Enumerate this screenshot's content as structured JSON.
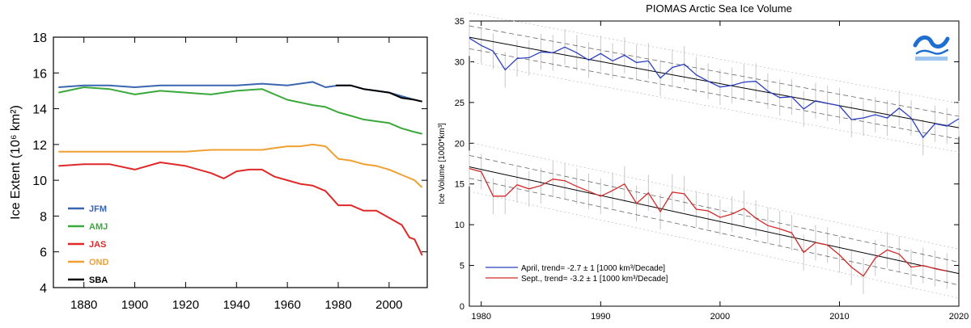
{
  "colors": {
    "jfm": "#3a66b0",
    "amj": "#3aa83a",
    "jas": "#e02828",
    "ond": "#f0a030",
    "sba": "#000000",
    "april": "#2a3fc0",
    "sept": "#d02a2a"
  },
  "chart_data": [
    {
      "type": "line",
      "title": "",
      "xlabel": "",
      "ylabel": "Ice Extent (10⁶ km²)",
      "xlim": [
        1868,
        2015
      ],
      "ylim": [
        4,
        18
      ],
      "x_ticks": [
        1880,
        1900,
        1920,
        1940,
        1960,
        1980,
        2000
      ],
      "y_ticks": [
        4,
        6,
        8,
        10,
        12,
        14,
        16,
        18
      ],
      "legend": [
        "JFM",
        "AMJ",
        "JAS",
        "OND",
        "SBA"
      ],
      "legend_position": "bottom-left",
      "series": [
        {
          "name": "JFM",
          "color_key": "jfm",
          "x": [
            1870,
            1880,
            1890,
            1900,
            1910,
            1920,
            1930,
            1940,
            1950,
            1960,
            1970,
            1975,
            1980,
            1985,
            1990,
            1995,
            2000,
            2005,
            2010,
            2013
          ],
          "y": [
            15.2,
            15.3,
            15.3,
            15.2,
            15.3,
            15.3,
            15.3,
            15.3,
            15.4,
            15.3,
            15.5,
            15.2,
            15.3,
            15.3,
            15.1,
            15.0,
            14.9,
            14.7,
            14.5,
            14.4
          ]
        },
        {
          "name": "AMJ",
          "color_key": "amj",
          "x": [
            1870,
            1880,
            1890,
            1900,
            1910,
            1920,
            1930,
            1940,
            1950,
            1960,
            1970,
            1975,
            1980,
            1985,
            1990,
            1995,
            2000,
            2005,
            2010,
            2013
          ],
          "y": [
            14.9,
            15.2,
            15.1,
            14.8,
            15.0,
            14.9,
            14.8,
            15.0,
            15.1,
            14.5,
            14.2,
            14.1,
            13.8,
            13.6,
            13.4,
            13.3,
            13.2,
            12.9,
            12.7,
            12.6
          ]
        },
        {
          "name": "JAS",
          "color_key": "jas",
          "x": [
            1870,
            1880,
            1890,
            1900,
            1910,
            1920,
            1930,
            1935,
            1940,
            1945,
            1950,
            1955,
            1960,
            1965,
            1970,
            1975,
            1980,
            1985,
            1990,
            1995,
            2000,
            2005,
            2008,
            2010,
            2013
          ],
          "y": [
            10.8,
            10.9,
            10.9,
            10.6,
            11.0,
            10.8,
            10.4,
            10.1,
            10.5,
            10.6,
            10.6,
            10.2,
            10.0,
            9.8,
            9.7,
            9.4,
            8.6,
            8.6,
            8.3,
            8.3,
            7.9,
            7.5,
            6.8,
            6.7,
            5.8
          ]
        },
        {
          "name": "OND",
          "color_key": "ond",
          "x": [
            1870,
            1880,
            1890,
            1900,
            1910,
            1920,
            1930,
            1940,
            1950,
            1955,
            1960,
            1965,
            1970,
            1975,
            1980,
            1985,
            1990,
            1995,
            2000,
            2005,
            2010,
            2013
          ],
          "y": [
            11.6,
            11.6,
            11.6,
            11.6,
            11.6,
            11.6,
            11.7,
            11.7,
            11.7,
            11.8,
            11.9,
            11.9,
            12.0,
            11.9,
            11.2,
            11.1,
            10.9,
            10.8,
            10.6,
            10.3,
            10.0,
            9.6
          ]
        },
        {
          "name": "SBA",
          "color_key": "sba",
          "x": [
            1979,
            1985,
            1990,
            1995,
            2000,
            2005,
            2010,
            2013
          ],
          "y": [
            15.3,
            15.3,
            15.1,
            15.0,
            14.9,
            14.6,
            14.5,
            14.4
          ]
        }
      ]
    },
    {
      "type": "line",
      "title": "PIOMAS Arctic Sea Ice Volume",
      "xlabel": "",
      "ylabel": "Ice Volume [1000*km³]",
      "xlim": [
        1979,
        2020
      ],
      "ylim": [
        0,
        35
      ],
      "x_ticks": [
        1980,
        1990,
        2000,
        2010,
        2020
      ],
      "y_ticks": [
        0,
        5,
        10,
        15,
        20,
        25,
        30,
        35
      ],
      "legend": [
        "April, trend= -2.7 ± 1 [1000 km³/Decade]",
        "Sept., trend= -3.2 ± 1 [1000 km³/Decade]"
      ],
      "legend_position": "bottom-left",
      "series": [
        {
          "name": "April, trend= -2.7 ± 1 [1000 km³/Decade]",
          "color_key": "april",
          "x": [
            1979,
            1980,
            1981,
            1982,
            1983,
            1984,
            1985,
            1986,
            1987,
            1988,
            1989,
            1990,
            1991,
            1992,
            1993,
            1994,
            1995,
            1996,
            1997,
            1998,
            1999,
            2000,
            2001,
            2002,
            2003,
            2004,
            2005,
            2006,
            2007,
            2008,
            2009,
            2010,
            2011,
            2012,
            2013,
            2014,
            2015,
            2016,
            2017,
            2018,
            2019,
            2020
          ],
          "y": [
            32.9,
            32.0,
            31.3,
            29.0,
            30.4,
            30.5,
            31.2,
            31.1,
            31.8,
            31.1,
            30.2,
            31.0,
            30.1,
            30.8,
            29.9,
            30.1,
            28.0,
            29.3,
            29.7,
            28.4,
            27.6,
            26.9,
            27.1,
            27.5,
            27.6,
            26.4,
            25.6,
            25.7,
            24.2,
            25.2,
            24.9,
            24.6,
            22.9,
            23.1,
            23.5,
            23.1,
            24.3,
            23.1,
            20.7,
            22.4,
            22.1,
            23.0
          ]
        },
        {
          "name": "Sept., trend= -3.2 ± 1 [1000 km³/Decade]",
          "color_key": "sept",
          "x": [
            1979,
            1980,
            1981,
            1982,
            1983,
            1984,
            1985,
            1986,
            1987,
            1988,
            1989,
            1990,
            1991,
            1992,
            1993,
            1994,
            1995,
            1996,
            1997,
            1998,
            1999,
            2000,
            2001,
            2002,
            2003,
            2004,
            2005,
            2006,
            2007,
            2008,
            2009,
            2010,
            2011,
            2012,
            2013,
            2014,
            2015,
            2016,
            2017,
            2018,
            2019
          ],
          "y": [
            16.9,
            16.5,
            13.5,
            13.5,
            14.9,
            14.4,
            14.8,
            15.6,
            15.4,
            14.7,
            14.1,
            13.5,
            14.2,
            15.0,
            12.6,
            13.9,
            11.6,
            14.0,
            13.8,
            11.9,
            11.7,
            10.9,
            11.3,
            12.0,
            10.8,
            9.9,
            9.5,
            9.0,
            6.6,
            7.8,
            7.5,
            6.3,
            4.8,
            3.7,
            5.9,
            6.9,
            6.4,
            4.8,
            5.0,
            4.6,
            4.3
          ]
        }
      ],
      "trend_lines": [
        {
          "color_key": "sba",
          "x": [
            1979,
            2020
          ],
          "y": [
            33.0,
            21.9
          ]
        },
        {
          "color_key": "sba",
          "x": [
            1979,
            2020
          ],
          "y": [
            17.1,
            4.0
          ]
        }
      ]
    }
  ]
}
